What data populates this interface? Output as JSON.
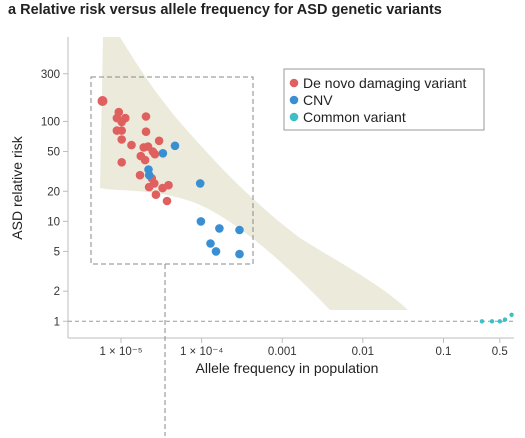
{
  "title": "a  Relative risk versus allele frequency for ASD genetic variants",
  "chart_data": {
    "type": "scatter",
    "title": "Relative risk versus allele frequency for ASD genetic variants",
    "panel_label": "a",
    "xlabel": "Allele frequency in population",
    "ylabel": "ASD relative risk",
    "x_scale": "log",
    "y_scale": "log",
    "xlim": [
      2.2e-06,
      0.75
    ],
    "ylim": [
      0.68,
      700
    ],
    "x_ticks": [
      {
        "value": 1e-05,
        "label": "1 × 10⁻⁵"
      },
      {
        "value": 0.0001,
        "label": "1 × 10⁻⁴"
      },
      {
        "value": 0.001,
        "label": "0.001"
      },
      {
        "value": 0.01,
        "label": "0.01"
      },
      {
        "value": 0.1,
        "label": "0.1"
      },
      {
        "value": 0.5,
        "label": "0.5"
      }
    ],
    "y_ticks": [
      {
        "value": 1,
        "label": "1"
      },
      {
        "value": 2,
        "label": "2"
      },
      {
        "value": 5,
        "label": "5"
      },
      {
        "value": 10,
        "label": "10"
      },
      {
        "value": 20,
        "label": "20"
      },
      {
        "value": 50,
        "label": "50"
      },
      {
        "value": 100,
        "label": "100"
      },
      {
        "value": 300,
        "label": "300"
      }
    ],
    "reference_line_y": 1,
    "legend": {
      "position": "top-right"
    },
    "series": [
      {
        "name": "De novo damaging variant",
        "color": "#e06060",
        "points": [
          [
            5.9e-06,
            160
          ],
          [
            9.4e-06,
            124
          ],
          [
            8.9e-06,
            108
          ],
          [
            1.02e-05,
            99
          ],
          [
            1.13e-05,
            108
          ],
          [
            8.9e-06,
            81
          ],
          [
            1.02e-05,
            81
          ],
          [
            1.02e-05,
            66
          ],
          [
            1.35e-05,
            58
          ],
          [
            1.02e-05,
            39
          ],
          [
            2.04e-05,
            112
          ],
          [
            2.04e-05,
            79
          ],
          [
            1.91e-05,
            55
          ],
          [
            1.76e-05,
            45
          ],
          [
            1.99e-05,
            41
          ],
          [
            2.16e-05,
            56
          ],
          [
            1.72e-05,
            29
          ],
          [
            2.48e-05,
            50
          ],
          [
            2.63e-05,
            47
          ],
          [
            2.97e-05,
            64
          ],
          [
            2.41e-05,
            27
          ],
          [
            2.23e-05,
            22
          ],
          [
            2.59e-05,
            24
          ],
          [
            2.71e-05,
            18.5
          ],
          [
            3.28e-05,
            21.5
          ],
          [
            3.88e-05,
            23
          ],
          [
            3.72e-05,
            16
          ]
        ]
      },
      {
        "name": "CNV",
        "color": "#3a8fd3",
        "points": [
          [
            2.19e-05,
            33
          ],
          [
            2.24e-05,
            29
          ],
          [
            3.31e-05,
            48
          ],
          [
            4.68e-05,
            57
          ],
          [
            9.6e-05,
            24
          ],
          [
            9.8e-05,
            10
          ],
          [
            0.000166,
            8.5
          ],
          [
            0.000295,
            8.2
          ],
          [
            0.000129,
            6
          ],
          [
            0.000151,
            5
          ],
          [
            0.000295,
            4.7
          ]
        ]
      },
      {
        "name": "Common variant",
        "color": "#3cc0c8",
        "points": [
          [
            0.3,
            1.0
          ],
          [
            0.4,
            1.0
          ],
          [
            0.5,
            1.0
          ],
          [
            0.58,
            1.04
          ],
          [
            0.7,
            1.16
          ]
        ]
      }
    ]
  }
}
